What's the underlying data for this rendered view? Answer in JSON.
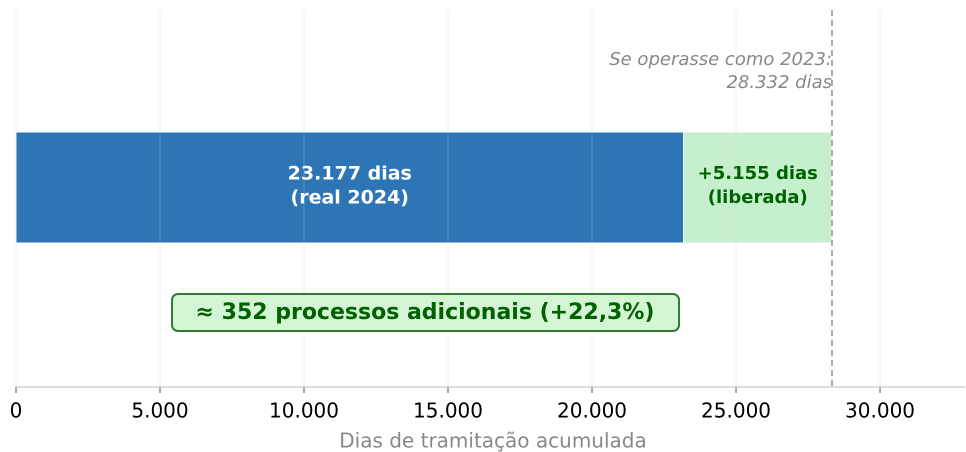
{
  "chart_data": {
    "type": "stacked-barh",
    "xlabel": "Dias de tramitação acumulada",
    "xlim": [
      0,
      32950
    ],
    "xticks": [
      0,
      {
        "value": 5000,
        "label": "5.000"
      },
      {
        "value": 10000,
        "label": "10.000"
      },
      {
        "value": 15000,
        "label": "15.000"
      },
      {
        "value": 20000,
        "label": "20.000"
      },
      {
        "value": 25000,
        "label": "25.000"
      },
      {
        "value": 30000,
        "label": "30.000"
      }
    ],
    "grid": true,
    "series": [
      {
        "name": "(real 2024)",
        "color": "#2e75b6",
        "label_color": "#ffffff",
        "values": [
          23177
        ],
        "value_labels": [
          "23.177 dias"
        ]
      },
      {
        "name": "(liberada)",
        "color": "#c6efce",
        "label_color": "#006100",
        "values": [
          5155
        ],
        "value_labels": [
          "+5.155 dias"
        ]
      }
    ],
    "reference_line": {
      "value": 28332,
      "color": "#aaaaaa",
      "label": [
        "Se operasse como 2023:",
        "28.332 dias"
      ]
    },
    "annotation": {
      "text": "≈ 352 processos adicionais (+22,3%)",
      "color": "#006100",
      "fill": "#d4f5d4",
      "border": "#2e7d32"
    }
  }
}
